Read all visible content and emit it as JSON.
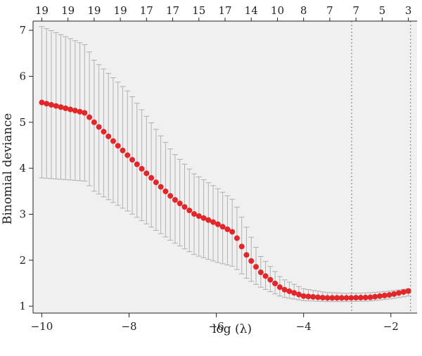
{
  "chart_data": {
    "type": "scatter",
    "xlabel": "log (λ)",
    "ylabel": "Binomial deviance",
    "xlim": [
      -10.2,
      -1.4
    ],
    "ylim": [
      0.85,
      7.2
    ],
    "xticks": [
      -10,
      -8,
      -6,
      -4,
      -2
    ],
    "xtick_labels": [
      "−10",
      "−8",
      "−6",
      "−4",
      "−2"
    ],
    "yticks": [
      1,
      2,
      3,
      4,
      5,
      6,
      7
    ],
    "ytick_labels": [
      "1",
      "2",
      "3",
      "4",
      "5",
      "6",
      "7"
    ],
    "top_axis": {
      "x": [
        -10,
        -9,
        -8,
        -7,
        -6,
        -5,
        -4,
        -3,
        -2,
        -1.5
      ],
      "labels": [
        "19",
        "19",
        "19",
        "19",
        "17",
        "17",
        "15",
        "17",
        "14",
        "10",
        "8",
        "7",
        "7",
        "5",
        "3"
      ],
      "positions": [
        -10,
        -9.4,
        -8.8,
        -8.2,
        -7.6,
        -7.0,
        -6.4,
        -5.8,
        -5.2,
        -4.6,
        -4.0,
        -3.4,
        -2.8,
        -2.2,
        -1.6
      ]
    },
    "vlines": [
      -2.9,
      -1.55
    ],
    "point_color": "#e3262a",
    "errorbar_color": "#b0b0b0",
    "background": "#f0f0f0",
    "key_points": [
      {
        "x": -10.0,
        "y": 5.43,
        "lo": 3.79,
        "hi": 7.08
      },
      {
        "x": -9.0,
        "y": 5.2,
        "lo": 3.72,
        "hi": 6.68
      },
      {
        "x": -8.8,
        "y": 5.0,
        "lo": 3.5,
        "hi": 6.35
      },
      {
        "x": -8.0,
        "y": 4.25,
        "lo": 3.05,
        "hi": 5.65
      },
      {
        "x": -7.0,
        "y": 3.35,
        "lo": 2.4,
        "hi": 4.35
      },
      {
        "x": -6.5,
        "y": 3.0,
        "lo": 2.12,
        "hi": 3.87
      },
      {
        "x": -6.0,
        "y": 2.8,
        "lo": 1.96,
        "hi": 3.58
      },
      {
        "x": -5.6,
        "y": 2.6,
        "lo": 1.86,
        "hi": 3.3
      },
      {
        "x": -5.3,
        "y": 2.1,
        "lo": 1.6,
        "hi": 2.7
      },
      {
        "x": -5.0,
        "y": 1.75,
        "lo": 1.42,
        "hi": 2.1
      },
      {
        "x": -4.5,
        "y": 1.38,
        "lo": 1.2,
        "hi": 1.6
      },
      {
        "x": -4.0,
        "y": 1.22,
        "lo": 1.12,
        "hi": 1.38
      },
      {
        "x": -3.5,
        "y": 1.18,
        "lo": 1.1,
        "hi": 1.3
      },
      {
        "x": -3.0,
        "y": 1.18,
        "lo": 1.1,
        "hi": 1.28
      },
      {
        "x": -2.5,
        "y": 1.19,
        "lo": 1.11,
        "hi": 1.29
      },
      {
        "x": -2.0,
        "y": 1.25,
        "lo": 1.16,
        "hi": 1.33
      },
      {
        "x": -1.6,
        "y": 1.33,
        "lo": 1.22,
        "hi": 1.38
      }
    ],
    "n_points": 78,
    "x_range": [
      -10.0,
      -1.6
    ]
  }
}
